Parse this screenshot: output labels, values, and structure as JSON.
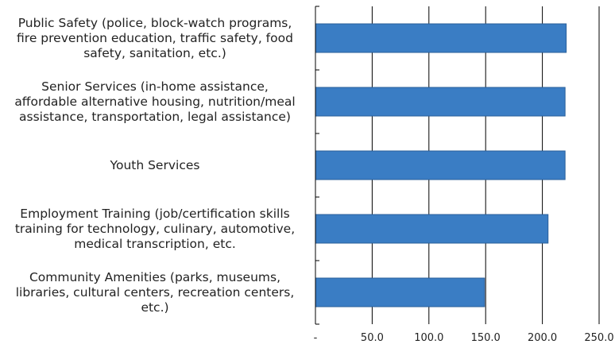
{
  "chart_data": {
    "type": "bar",
    "orientation": "horizontal",
    "categories": [
      [
        "Public Safety (police, block-watch programs,",
        "fire prevention education, traffic safety, food",
        "safety, sanitation, etc.)"
      ],
      [
        "Senior Services (in-home assistance,",
        "affordable alternative housing, nutrition/meal",
        "assistance, transportation, legal assistance)"
      ],
      [
        "Youth Services"
      ],
      [
        "Employment Training (job/certification skills",
        "training for technology, culinary, automotive,",
        "medical transcription, etc."
      ],
      [
        "Community Amenities (parks, museums,",
        "libraries, cultural centers, recreation centers,",
        "etc.)"
      ]
    ],
    "values": [
      221,
      220,
      220,
      205,
      149
    ],
    "xlim": [
      0,
      250
    ],
    "xticks": [
      0,
      50,
      100,
      150,
      200,
      250
    ],
    "xtick_labels": [
      "-",
      "50.0",
      "100.0",
      "150.0",
      "200.0",
      "250.0"
    ],
    "title": "",
    "xlabel": "",
    "ylabel": "",
    "grid": true,
    "legend": false,
    "bar_color": "#3a7dc4",
    "bar_border_color": "#2a5f9a",
    "grid_color": "#000000"
  }
}
